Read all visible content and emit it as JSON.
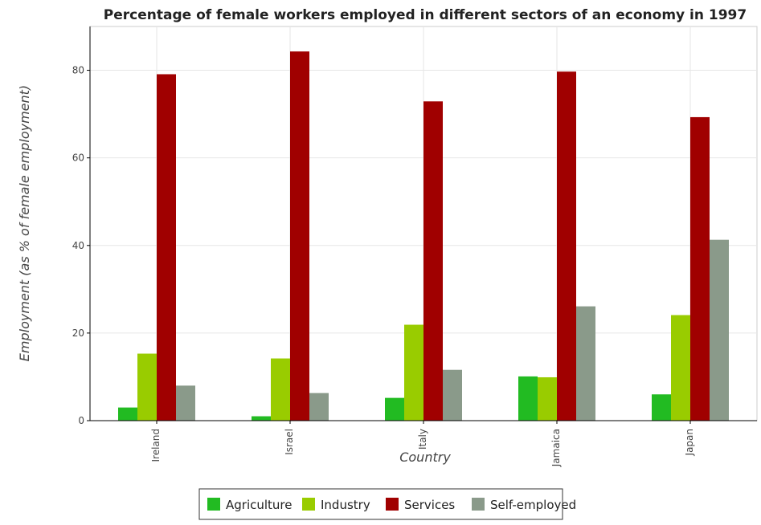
{
  "chart_data": {
    "type": "bar",
    "title": "Percentage of female workers employed in different sectors of an economy in 1997",
    "xlabel": "Country",
    "ylabel": "Employment (as % of female employment)",
    "categories": [
      "Ireland",
      "Israel",
      "Italy",
      "Jamaica",
      "Japan"
    ],
    "ylim": [
      0,
      90
    ],
    "yticks": [
      0,
      20,
      40,
      60,
      80
    ],
    "grid": true,
    "legend_position": "bottom",
    "series": [
      {
        "name": "Agriculture",
        "color": "#22bb22",
        "values": [
          3.0,
          1.0,
          5.2,
          10.1,
          6.0
        ]
      },
      {
        "name": "Industry",
        "color": "#99cc00",
        "values": [
          15.3,
          14.2,
          21.9,
          9.9,
          24.1
        ]
      },
      {
        "name": "Services",
        "color": "#a00000",
        "values": [
          79.1,
          84.3,
          72.9,
          79.7,
          69.3
        ]
      },
      {
        "name": "Self-employed",
        "color": "#8a9a8a",
        "values": [
          8.0,
          6.3,
          11.6,
          26.1,
          41.3
        ]
      }
    ]
  }
}
